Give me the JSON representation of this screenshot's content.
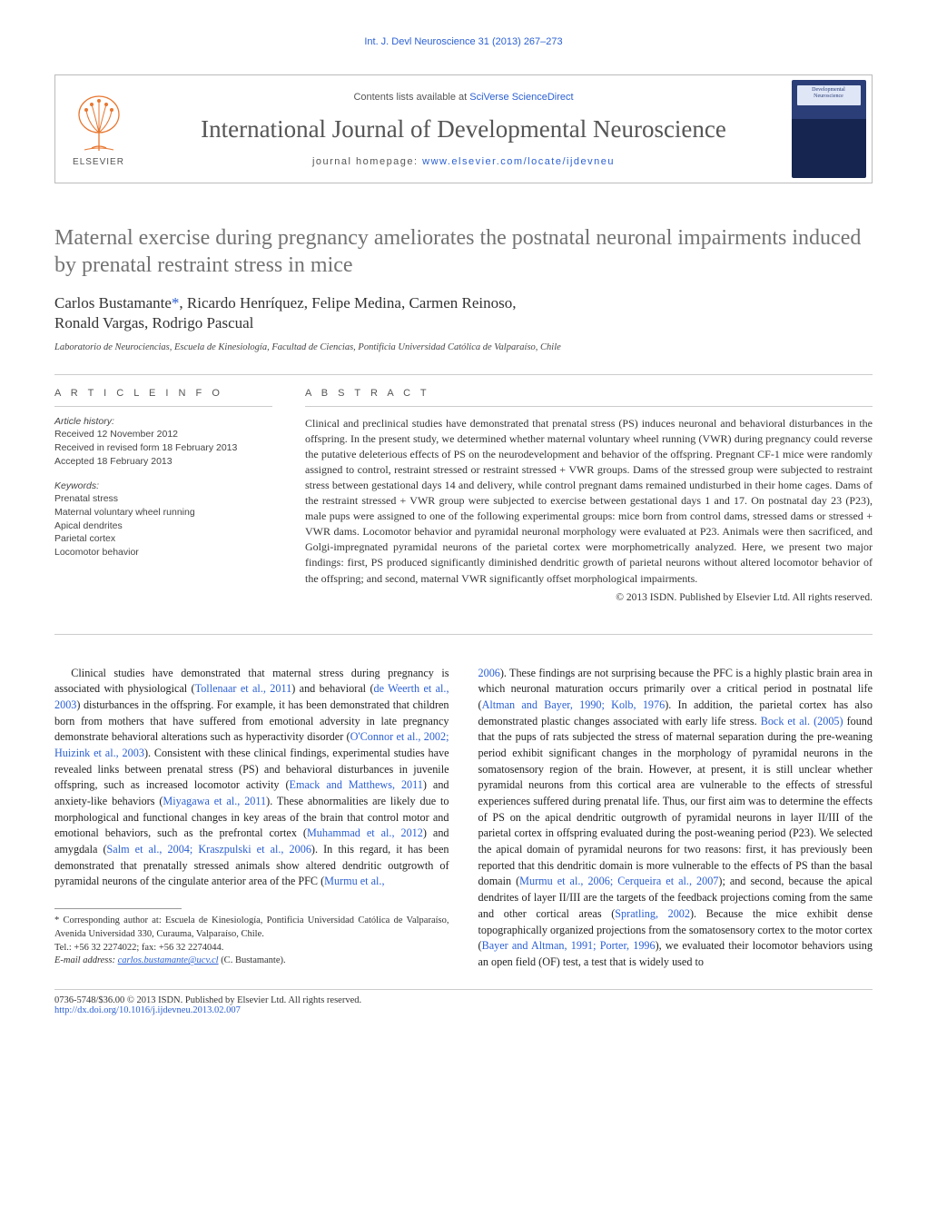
{
  "running_head": "Int. J. Devl Neuroscience 31 (2013) 267–273",
  "masthead": {
    "contents_prefix": "Contents lists available at ",
    "contents_link": "SciVerse ScienceDirect",
    "journal": "International Journal of Developmental Neuroscience",
    "homepage_prefix": "journal homepage: ",
    "homepage_link": "www.elsevier.com/locate/ijdevneu",
    "publisher": "ELSEVIER",
    "cover_label": "Developmental Neuroscience"
  },
  "title": "Maternal exercise during pregnancy ameliorates the postnatal neuronal impairments induced by prenatal restraint stress in mice",
  "authors_line1": "Carlos Bustamante*, Ricardo Henríquez, Felipe Medina, Carmen Reinoso,",
  "authors_line2": "Ronald Vargas, Rodrigo Pascual",
  "affiliation": "Laboratorio de Neurociencias, Escuela de Kinesiología, Facultad de Ciencias, Pontificia Universidad Católica de Valparaíso, Chile",
  "info_label": "A R T I C L E   I N F O",
  "abstract_label": "A B S T R A C T",
  "history": {
    "heading": "Article history:",
    "received": "Received 12 November 2012",
    "revised": "Received in revised form 18 February 2013",
    "accepted": "Accepted 18 February 2013"
  },
  "keywords": {
    "heading": "Keywords:",
    "items": [
      "Prenatal stress",
      "Maternal voluntary wheel running",
      "Apical dendrites",
      "Parietal cortex",
      "Locomotor behavior"
    ]
  },
  "abstract": "Clinical and preclinical studies have demonstrated that prenatal stress (PS) induces neuronal and behavioral disturbances in the offspring. In the present study, we determined whether maternal voluntary wheel running (VWR) during pregnancy could reverse the putative deleterious effects of PS on the neurodevelopment and behavior of the offspring. Pregnant CF-1 mice were randomly assigned to control, restraint stressed or restraint stressed + VWR groups. Dams of the stressed group were subjected to restraint stress between gestational days 14 and delivery, while control pregnant dams remained undisturbed in their home cages. Dams of the restraint stressed + VWR group were subjected to exercise between gestational days 1 and 17. On postnatal day 23 (P23), male pups were assigned to one of the following experimental groups: mice born from control dams, stressed dams or stressed + VWR dams. Locomotor behavior and pyramidal neuronal morphology were evaluated at P23. Animals were then sacrificed, and Golgi-impregnated pyramidal neurons of the parietal cortex were morphometrically analyzed. Here, we present two major findings: first, PS produced significantly diminished dendritic growth of parietal neurons without altered locomotor behavior of the offspring; and second, maternal VWR significantly offset morphological impairments.",
  "copyright": "© 2013 ISDN. Published by Elsevier Ltd. All rights reserved.",
  "body_col1": "Clinical studies have demonstrated that maternal stress during pregnancy is associated with physiological (<span class=\"ref\">Tollenaar et al., 2011</span>) and behavioral (<span class=\"ref\">de Weerth et al., 2003</span>) disturbances in the offspring. For example, it has been demonstrated that children born from mothers that have suffered from emotional adversity in late pregnancy demonstrate behavioral alterations such as hyperactivity disorder (<span class=\"ref\">O'Connor et al., 2002; Huizink et al., 2003</span>). Consistent with these clinical findings, experimental studies have revealed links between prenatal stress (PS) and behavioral disturbances in juvenile offspring, such as increased locomotor activity (<span class=\"ref\">Emack and Matthews, 2011</span>) and anxiety-like behaviors (<span class=\"ref\">Miyagawa et al., 2011</span>). These abnormalities are likely due to morphological and functional changes in key areas of the brain that control motor and emotional behaviors, such as the prefrontal cortex (<span class=\"ref\">Muhammad et al., 2012</span>) and amygdala (<span class=\"ref\">Salm et al., 2004; Kraszpulski et al., 2006</span>). In this regard, it has been demonstrated that prenatally stressed animals show altered dendritic outgrowth of pyramidal neurons of the cingulate anterior area of the PFC (<span class=\"ref\">Murmu et al.,</span>",
  "body_col2": "<span class=\"ref\">2006</span>). These findings are not surprising because the PFC is a highly plastic brain area in which neuronal maturation occurs primarily over a critical period in postnatal life (<span class=\"ref\">Altman and Bayer, 1990; Kolb, 1976</span>). In addition, the parietal cortex has also demonstrated plastic changes associated with early life stress. <span class=\"ref\">Bock et al. (2005)</span> found that the pups of rats subjected the stress of maternal separation during the pre-weaning period exhibit significant changes in the morphology of pyramidal neurons in the somatosensory region of the brain. However, at present, it is still unclear whether pyramidal neurons from this cortical area are vulnerable to the effects of stressful experiences suffered during prenatal life. Thus, our first aim was to determine the effects of PS on the apical dendritic outgrowth of pyramidal neurons in layer II/III of the parietal cortex in offspring evaluated during the post-weaning period (P23). We selected the apical domain of pyramidal neurons for two reasons: first, it has previously been reported that this dendritic domain is more vulnerable to the effects of PS than the basal domain (<span class=\"ref\">Murmu et al., 2006; Cerqueira et al., 2007</span>); and second, because the apical dendrites of layer II/III are the targets of the feedback projections coming from the same and other cortical areas (<span class=\"ref\">Spratling, 2002</span>). Because the mice exhibit dense topographically organized projections from the somatosensory cortex to the motor cortex (<span class=\"ref\">Bayer and Altman, 1991; Porter, 1996</span>), we evaluated their locomotor behaviors using an open field (OF) test, a test that is widely used to",
  "footnote": {
    "corr_label": "* Corresponding author at: Escuela de Kinesiología, Pontificia Universidad Católica de Valparaíso, Avenida Universidad 330, Curauma, Valparaíso, Chile.",
    "tel": "Tel.: +56 32 2274022; fax: +56 32 2274044.",
    "email_label": "E-mail address:",
    "email": "carlos.bustamante@ucv.cl",
    "email_who": "(C. Bustamante)."
  },
  "footer": {
    "left1": "0736-5748/$36.00 © 2013 ISDN. Published by Elsevier Ltd. All rights reserved.",
    "left2": "http://dx.doi.org/10.1016/j.ijdevneu.2013.02.007"
  },
  "colors": {
    "link": "#2a5fd4",
    "title_gray": "#737373",
    "rule": "#cccccc",
    "text": "#333333",
    "elsevier_orange": "#e8762f"
  }
}
